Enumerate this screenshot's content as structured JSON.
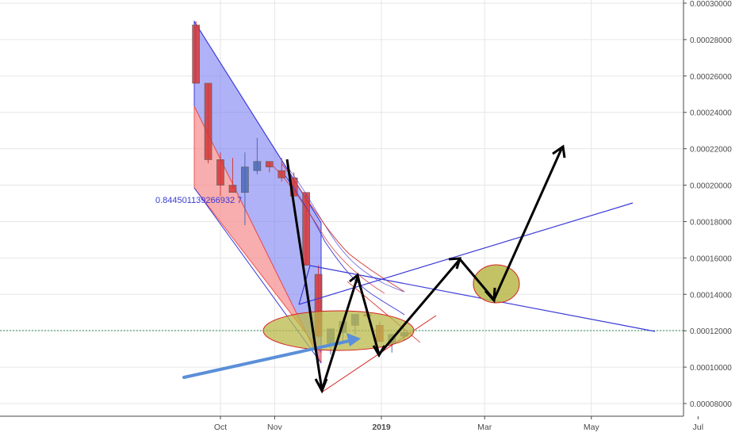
{
  "chart_data": {
    "type": "candlestick",
    "y_axis": {
      "min": 7e-05,
      "max": 0.0003,
      "ticks": [
        "0.00030000",
        "0.00028000",
        "0.00026000",
        "0.00024000",
        "0.00022000",
        "0.00020000",
        "0.00018000",
        "0.00016000",
        "0.00014000",
        "0.00012000",
        "0.00010000",
        "0.00008000"
      ],
      "tick_values": [
        0.0003,
        0.00028,
        0.00026,
        0.00024,
        0.00022,
        0.0002,
        0.00018,
        0.00016,
        0.00014,
        0.00012,
        0.0001,
        8e-05
      ]
    },
    "x_axis": {
      "ticks": [
        "Oct",
        "Nov",
        "2019",
        "Mar",
        "May",
        "Jul"
      ],
      "tick_dates": [
        "2018-10-01",
        "2018-11-01",
        "2019-01-01",
        "2019-03-01",
        "2019-05-01",
        "2019-07-01"
      ],
      "range": [
        "2018-09-13",
        "2019-07-06"
      ]
    },
    "grid": true,
    "candles": [
      {
        "date": "2018-09-17",
        "open": 0.000288,
        "high": 0.00029,
        "low": 0.000256,
        "close": 0.000256
      },
      {
        "date": "2018-09-24",
        "open": 0.000256,
        "high": 0.000256,
        "low": 0.000212,
        "close": 0.000214
      },
      {
        "date": "2018-10-01",
        "open": 0.000214,
        "high": 0.000218,
        "low": 0.000194,
        "close": 0.0002
      },
      {
        "date": "2018-10-08",
        "open": 0.0002,
        "high": 0.000215,
        "low": 0.000198,
        "close": 0.000196
      },
      {
        "date": "2018-10-15",
        "open": 0.000196,
        "high": 0.000218,
        "low": 0.000178,
        "close": 0.00021
      },
      {
        "date": "2018-10-22",
        "open": 0.000208,
        "high": 0.000226,
        "low": 0.000206,
        "close": 0.000213
      },
      {
        "date": "2018-10-29",
        "open": 0.000213,
        "high": 0.000213,
        "low": 0.000207,
        "close": 0.00021
      },
      {
        "date": "2018-11-05",
        "open": 0.000208,
        "high": 0.000215,
        "low": 0.000202,
        "close": 0.000204
      },
      {
        "date": "2018-11-12",
        "open": 0.000204,
        "high": 0.000207,
        "low": 0.000194,
        "close": 0.000194
      },
      {
        "date": "2018-11-19",
        "open": 0.000196,
        "high": 0.000196,
        "low": 0.000156,
        "close": 0.000156
      },
      {
        "date": "2018-11-26",
        "open": 0.000151,
        "high": 0.000156,
        "low": 0.000116,
        "close": 0.000117
      },
      {
        "date": "2018-12-03",
        "open": 0.000113,
        "high": 0.000121,
        "low": 0.000107,
        "close": 0.000121
      },
      {
        "date": "2018-12-10",
        "open": 0.000119,
        "high": 0.000125,
        "low": 0.000113,
        "close": 0.000125
      },
      {
        "date": "2018-12-17",
        "open": 0.000123,
        "high": 0.000129,
        "low": 0.000118,
        "close": 0.000129
      },
      {
        "date": "2018-12-24",
        "open": 0.000129,
        "high": 0.00013,
        "low": 0.000127,
        "close": 0.000128
      },
      {
        "date": "2018-12-31",
        "open": 0.000123,
        "high": 0.000125,
        "low": 0.000114,
        "close": 0.000114
      },
      {
        "date": "2019-01-07",
        "open": 0.000113,
        "high": 0.000118,
        "low": 0.000108,
        "close": 0.000118
      },
      {
        "date": "2019-01-14",
        "open": 0.000117,
        "high": 0.000121,
        "low": 0.000115,
        "close": 0.000119
      }
    ],
    "annotations": {
      "fib_ratio_label": "0.844501139266932 7",
      "horizontal_level": 0.00012
    },
    "colors": {
      "up": "#4d6bb5",
      "down": "#d23a3a",
      "channel_blue": "#7b7ef2",
      "channel_red": "#f58b8b",
      "line_blue": "#3a3ad8",
      "arrow": "#000000",
      "highlight_fill": "#b9b84a",
      "highlight_stroke": "#d62020",
      "trend_arrow": "#5b8fd8"
    }
  }
}
